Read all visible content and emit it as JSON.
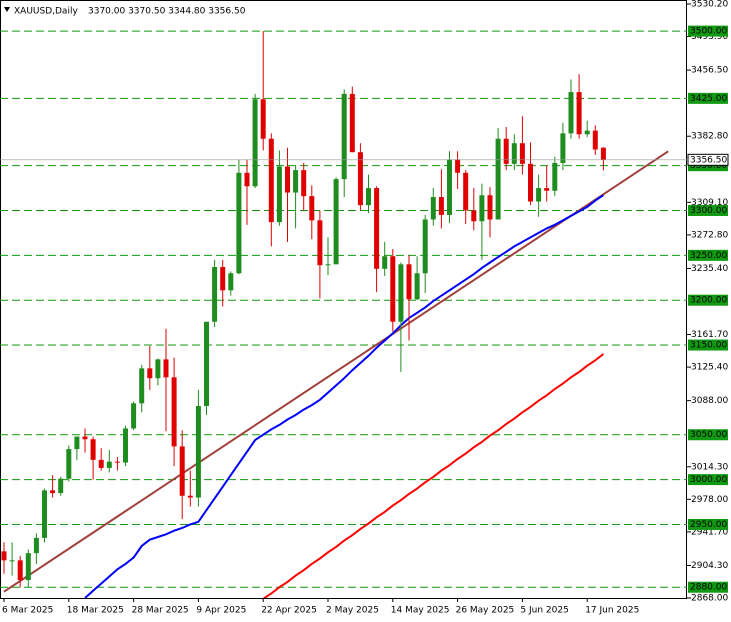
{
  "chart_data": {
    "type": "candlestick",
    "title": "XAUUSD,Daily",
    "header_values": "3370.00 3370.50 3344.80 3356.50",
    "categories": [
      "6 Mar 2025",
      null,
      null,
      null,
      null,
      null,
      null,
      null,
      "18 Mar 2025",
      null,
      null,
      null,
      null,
      null,
      null,
      null,
      "28 Mar 2025",
      null,
      null,
      null,
      null,
      null,
      null,
      null,
      "9 Apr 2025",
      null,
      null,
      null,
      null,
      null,
      null,
      null,
      "22 Apr 2025",
      null,
      null,
      null,
      null,
      null,
      null,
      null,
      "2 May 2025",
      null,
      null,
      null,
      null,
      null,
      null,
      null,
      "14 May 2025",
      null,
      null,
      null,
      null,
      null,
      null,
      null,
      "26 May 2025",
      null,
      null,
      null,
      null,
      null,
      null,
      null,
      "5 Jun 2025",
      null,
      null,
      null,
      null,
      null,
      null,
      null,
      "17 Jun 2025",
      null,
      null
    ],
    "open": [
      2920,
      2910,
      2910,
      2888,
      2918,
      2935,
      2988,
      2985,
      3001,
      3034,
      3048,
      3045,
      3022,
      3013,
      3020,
      3019,
      3057,
      3085,
      3124,
      3113,
      3134,
      3114,
      3037,
      2982,
      2980,
      3082,
      3176,
      3237,
      3211,
      3230,
      3342,
      3327,
      3424,
      3380,
      3287,
      3349,
      3320,
      3345,
      3316,
      3289,
      3239,
      3240,
      3335,
      3430,
      3365,
      3306,
      3325,
      3235,
      3249,
      3176,
      3240,
      3201,
      3230,
      3290,
      3315,
      3295,
      3357,
      3342,
      3300,
      3288,
      3317,
      3290,
      3380,
      3352,
      3375,
      3352,
      3310,
      3325,
      3322,
      3353,
      3386,
      3432,
      3385,
      3389,
      3370
    ],
    "high": [
      2930,
      2930,
      2915,
      2922,
      2940,
      2990,
      3005,
      3003,
      3038,
      3048,
      3057,
      3048,
      3035,
      3033,
      3025,
      3060,
      3087,
      3128,
      3149,
      3135,
      3168,
      3136,
      3055,
      3010,
      3100,
      3175,
      3245,
      3245,
      3232,
      3357,
      3357,
      3430,
      3500,
      3386,
      3367,
      3370,
      3350,
      3353,
      3328,
      3300,
      3270,
      3337,
      3435,
      3438,
      3375,
      3340,
      3327,
      3265,
      3257,
      3242,
      3250,
      3249,
      3295,
      3325,
      3346,
      3366,
      3366,
      3345,
      3325,
      3330,
      3326,
      3392,
      3393,
      3385,
      3405,
      3376,
      3340,
      3350,
      3360,
      3398,
      3446,
      3452,
      3400,
      3395,
      3370.5
    ],
    "low": [
      2895,
      2893,
      2880,
      2880,
      2906,
      2930,
      2980,
      2982,
      2998,
      3022,
      3030,
      3000,
      3010,
      3008,
      3010,
      3015,
      3055,
      3075,
      3100,
      3105,
      3054,
      3015,
      2956,
      2970,
      2970,
      3072,
      3170,
      3193,
      3205,
      3229,
      3284,
      3325,
      3367,
      3260,
      3283,
      3265,
      3280,
      3300,
      3268,
      3202,
      3228,
      3240,
      3315,
      3365,
      3300,
      3297,
      3209,
      3227,
      3165,
      3120,
      3155,
      3200,
      3208,
      3283,
      3280,
      3286,
      3324,
      3285,
      3278,
      3245,
      3270,
      3290,
      3345,
      3345,
      3340,
      3306,
      3293,
      3310,
      3316,
      3345,
      3380,
      3380,
      3382,
      3362,
      3344.8
    ],
    "close": [
      2910,
      2910,
      2888,
      2918,
      2935,
      2988,
      2985,
      3001,
      3034,
      3048,
      3045,
      3022,
      3013,
      3020,
      3019,
      3057,
      3085,
      3124,
      3113,
      3134,
      3114,
      3037,
      2982,
      2980,
      3082,
      3176,
      3237,
      3211,
      3230,
      3342,
      3327,
      3424,
      3380,
      3287,
      3349,
      3320,
      3345,
      3316,
      3289,
      3239,
      3240,
      3335,
      3430,
      3365,
      3306,
      3325,
      3235,
      3249,
      3176,
      3240,
      3201,
      3230,
      3290,
      3315,
      3295,
      3357,
      3342,
      3300,
      3288,
      3317,
      3290,
      3380,
      3352,
      3375,
      3352,
      3310,
      3325,
      3322,
      3353,
      3386,
      3432,
      3385,
      3389,
      3368,
      3356.5
    ],
    "up_color": "#1e8c1e",
    "down_color": "#e00000",
    "series": [
      {
        "color": "#0000ff",
        "values": [
          null,
          null,
          null,
          null,
          null,
          null,
          null,
          null,
          null,
          null,
          2868,
          2876,
          2884,
          2892,
          2900,
          2906,
          2913,
          2926,
          2933,
          2936,
          2939,
          2943,
          2946,
          2950,
          2953,
          2966,
          2979,
          2992,
          3005,
          3018,
          3031,
          3044,
          3050,
          3056,
          3061,
          3067,
          3072,
          3078,
          3083,
          3089,
          3097,
          3105,
          3113,
          3122,
          3130,
          3138,
          3147,
          3155,
          3163,
          3172,
          3180,
          3186,
          3192,
          3199,
          3205,
          3211,
          3217,
          3223,
          3229,
          3236,
          3242,
          3248,
          3254,
          3260,
          3265,
          3270,
          3275,
          3280,
          3284,
          3289,
          3294,
          3299,
          3304,
          3311,
          3317
        ]
      },
      {
        "color": "#ff0000",
        "values": [
          null,
          null,
          null,
          null,
          null,
          null,
          null,
          null,
          null,
          null,
          null,
          null,
          null,
          null,
          null,
          null,
          null,
          null,
          null,
          null,
          null,
          null,
          null,
          null,
          null,
          null,
          null,
          null,
          null,
          null,
          null,
          2860,
          2867,
          2873,
          2880,
          2886,
          2893,
          2899,
          2906,
          2912,
          2919,
          2925,
          2932,
          2938,
          2945,
          2951,
          2958,
          2964,
          2971,
          2977,
          2984,
          2990,
          2997,
          3003,
          3010,
          3016,
          3023,
          3029,
          3036,
          3042,
          3049,
          3055,
          3062,
          3068,
          3075,
          3081,
          3088,
          3094,
          3101,
          3107,
          3114,
          3120,
          3127,
          3133,
          3140
        ]
      }
    ],
    "trendline": {
      "x": [
        0,
        82
      ],
      "values": [
        2875,
        3366
      ],
      "color": "#a0403a"
    },
    "levels": [
      {
        "value": 3500,
        "label": "3500.00"
      },
      {
        "value": 3425,
        "label": "3425.00"
      },
      {
        "value": 3350,
        "label": "3350.00"
      },
      {
        "value": 3300,
        "label": "3300.00"
      },
      {
        "value": 3250,
        "label": "3250.00"
      },
      {
        "value": 3200,
        "label": "3200.00"
      },
      {
        "value": 3150,
        "label": "3150.00"
      },
      {
        "value": 3050,
        "label": "3050.00"
      },
      {
        "value": 3000,
        "label": "3000.00"
      },
      {
        "value": 2950,
        "label": "2950.00"
      },
      {
        "value": 2880,
        "label": "2880.00"
      }
    ],
    "level_color": "#119911",
    "current_price": {
      "value": 3356.5,
      "label": "3356.50"
    },
    "ylim": [
      2868.0,
      3530.2
    ],
    "yticks": [
      {
        "value": 3530.2,
        "label": "3530.20"
      },
      {
        "value": 3493.9,
        "label": "3493.90"
      },
      {
        "value": 3456.5,
        "label": "3456.50"
      },
      {
        "value": 3382.8,
        "label": "3382.80"
      },
      {
        "value": 3309.1,
        "label": "3309.10"
      },
      {
        "value": 3272.8,
        "label": "3272.80"
      },
      {
        "value": 3235.4,
        "label": "3235.40"
      },
      {
        "value": 3161.7,
        "label": "3161.70"
      },
      {
        "value": 3125.4,
        "label": "3125.40"
      },
      {
        "value": 3088.0,
        "label": "3088.00"
      },
      {
        "value": 3014.3,
        "label": "3014.30"
      },
      {
        "value": 2978.0,
        "label": "2978.00"
      },
      {
        "value": 2941.7,
        "label": "2941.70"
      },
      {
        "value": 2904.3,
        "label": "2904.30"
      },
      {
        "value": 2868.0,
        "label": "2868.00"
      }
    ]
  }
}
